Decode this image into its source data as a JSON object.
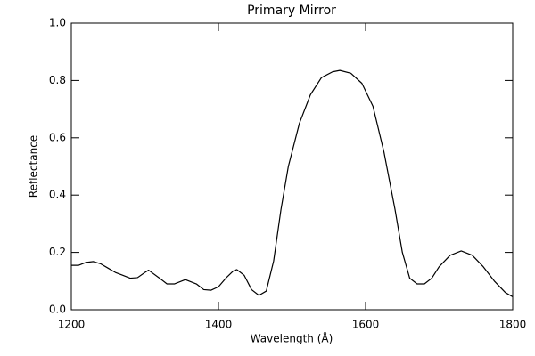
{
  "chart_data": {
    "type": "line",
    "title": "Primary Mirror",
    "xlabel": "Wavelength (Å)",
    "ylabel": "Reflectance",
    "x": [
      1200,
      1210,
      1220,
      1230,
      1240,
      1250,
      1260,
      1270,
      1280,
      1290,
      1300,
      1305,
      1320,
      1330,
      1340,
      1350,
      1355,
      1370,
      1380,
      1390,
      1400,
      1410,
      1420,
      1425,
      1435,
      1445,
      1455,
      1465,
      1475,
      1485,
      1495,
      1510,
      1525,
      1540,
      1555,
      1565,
      1580,
      1595,
      1610,
      1625,
      1640,
      1650,
      1660,
      1670,
      1680,
      1690,
      1700,
      1715,
      1730,
      1745,
      1760,
      1775,
      1790,
      1800
    ],
    "values": [
      0.155,
      0.155,
      0.165,
      0.168,
      0.16,
      0.145,
      0.13,
      0.12,
      0.11,
      0.112,
      0.13,
      0.138,
      0.11,
      0.09,
      0.09,
      0.1,
      0.105,
      0.09,
      0.07,
      0.068,
      0.08,
      0.11,
      0.135,
      0.14,
      0.12,
      0.07,
      0.05,
      0.065,
      0.17,
      0.35,
      0.5,
      0.65,
      0.75,
      0.81,
      0.83,
      0.835,
      0.825,
      0.79,
      0.71,
      0.55,
      0.35,
      0.2,
      0.11,
      0.09,
      0.09,
      0.11,
      0.15,
      0.19,
      0.205,
      0.19,
      0.15,
      0.1,
      0.06,
      0.045
    ],
    "color": "#000000",
    "xlim": [
      1200,
      1800
    ],
    "xticks": [
      1200,
      1400,
      1600,
      1800
    ],
    "ylim": [
      0,
      1
    ],
    "yticks": [
      {
        "value": 0,
        "label": "0.0"
      },
      0.2,
      0.4,
      0.6,
      0.8,
      {
        "value": 1,
        "label": "1.0"
      }
    ]
  }
}
